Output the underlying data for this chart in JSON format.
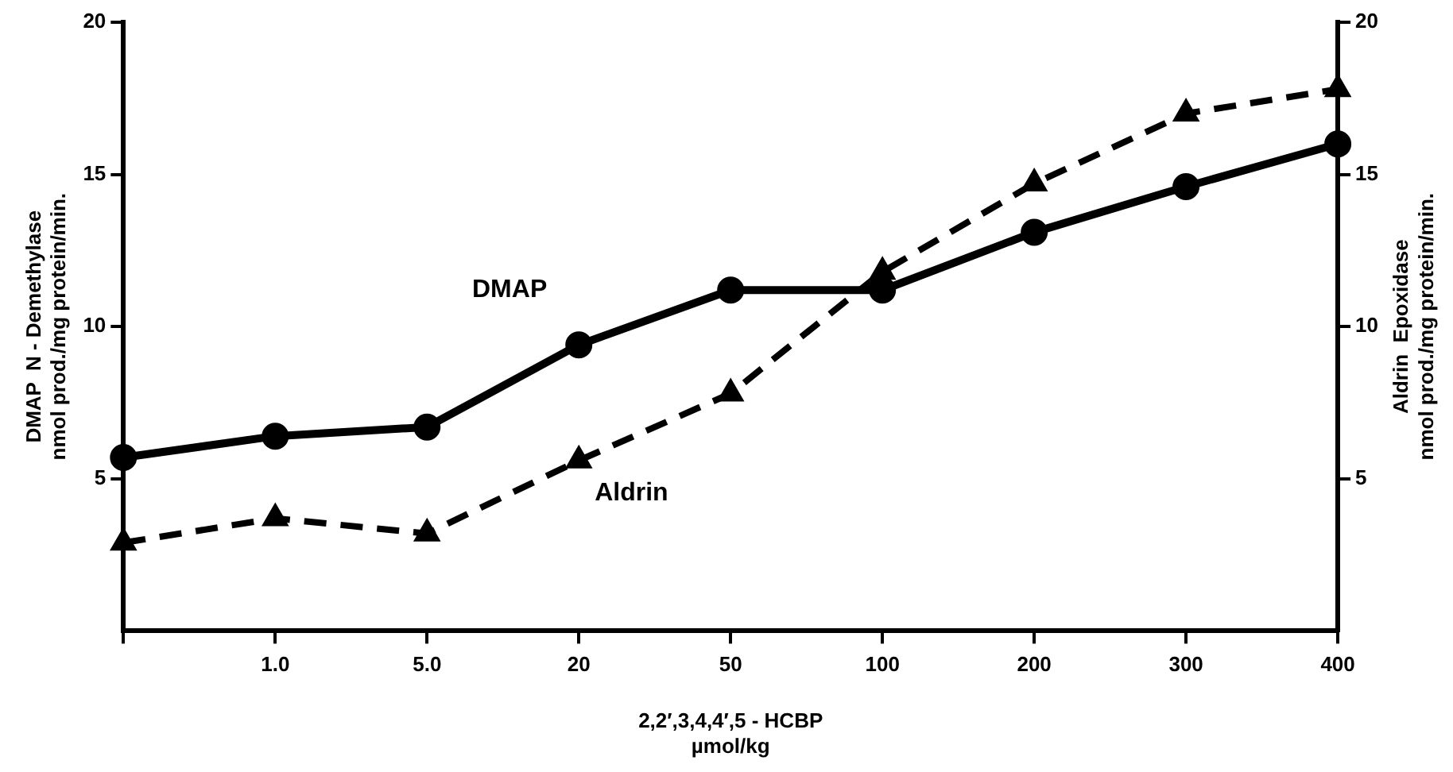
{
  "chart_data": {
    "type": "line",
    "xlabel": "2,2′,3,4,4′,5 - HCBP\nµmol/kg",
    "ylabel": "DMAP  N - Demethylase\nnmol prod./mg protein/min.",
    "y2label": "Aldrin  Epoxidase\nnmol prod./mg protein/min.",
    "categories": [
      null,
      "1.0",
      "5.0",
      "20",
      "50",
      "100",
      "200",
      "300",
      "400"
    ],
    "series": [
      {
        "name": "DMAP",
        "color": "#000000",
        "marker": "circle",
        "line_style": "solid",
        "values": [
          5.7,
          6.4,
          6.7,
          9.4,
          11.2,
          11.2,
          13.1,
          14.6,
          16.0
        ]
      },
      {
        "name": "Aldrin",
        "color": "#000000",
        "marker": "triangle",
        "line_style": "dashed",
        "axis": "y2",
        "values": [
          2.9,
          3.7,
          3.2,
          5.6,
          7.8,
          11.8,
          14.7,
          17.0,
          17.8
        ]
      }
    ],
    "ylim": [
      0,
      20
    ],
    "yticks": [
      5,
      10,
      15,
      20
    ],
    "y2lim": [
      0,
      20
    ],
    "y2ticks": [
      5,
      10,
      15,
      20
    ],
    "grid": false,
    "legend": false
  }
}
